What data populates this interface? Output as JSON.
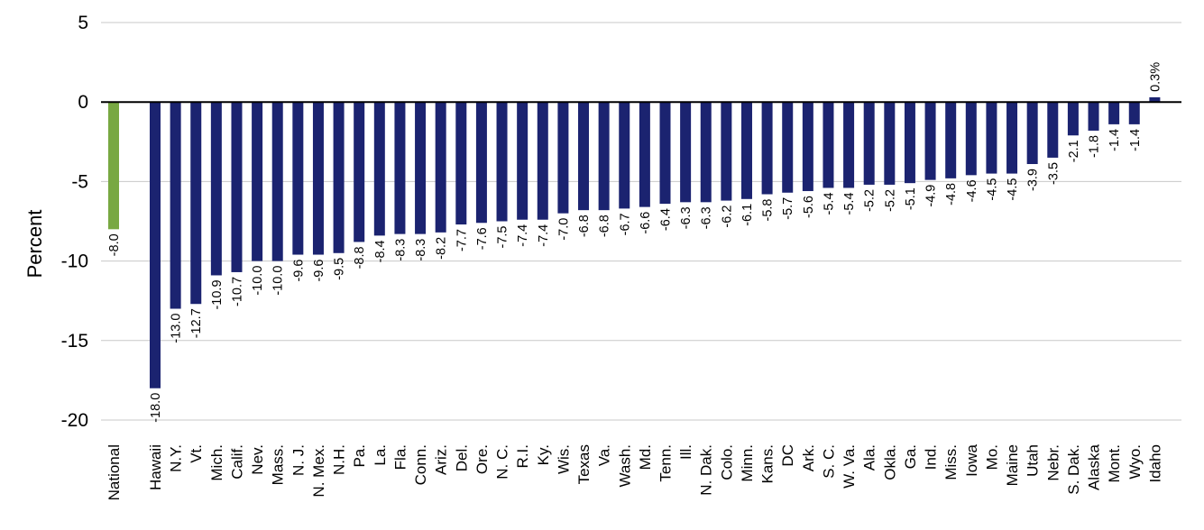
{
  "chart_data": {
    "type": "bar",
    "title": "",
    "xlabel": "",
    "ylabel": "Percent",
    "ylim": [
      -20,
      5
    ],
    "yticks": [
      5,
      0,
      -5,
      -10,
      -15,
      -20
    ],
    "grid": true,
    "legend": "none",
    "colors": {
      "national": "#78a842",
      "states": "#1b2370"
    },
    "categories": [
      "National",
      "Hawaii",
      "N.Y.",
      "Vt.",
      "Mich.",
      "Calif.",
      "Nev.",
      "Mass.",
      "N. J.",
      "N. Mex.",
      "N.H.",
      "Pa.",
      "La.",
      "Fla.",
      "Conn.",
      "Ariz.",
      "Del.",
      "Ore.",
      "N. C.",
      "R.I.",
      "Ky.",
      "Wis.",
      "Texas",
      "Va.",
      "Wash.",
      "Md.",
      "Tenn.",
      "Ill.",
      "N. Dak.",
      "Colo.",
      "Minn.",
      "Kans.",
      "DC",
      "Ark.",
      "S. C.",
      "W. Va.",
      "Ala.",
      "Okla.",
      "Ga.",
      "Ind.",
      "Miss.",
      "Iowa",
      "Mo.",
      "Maine",
      "Utah",
      "Nebr.",
      "S. Dak.",
      "Alaska",
      "Mont.",
      "Wyo.",
      "Idaho"
    ],
    "values": [
      -8.0,
      -18.0,
      -13.0,
      -12.7,
      -10.9,
      -10.7,
      -10.0,
      -10.0,
      -9.6,
      -9.6,
      -9.5,
      -8.8,
      -8.4,
      -8.3,
      -8.3,
      -8.2,
      -7.7,
      -7.6,
      -7.5,
      -7.4,
      -7.4,
      -7.0,
      -6.8,
      -6.8,
      -6.7,
      -6.6,
      -6.4,
      -6.3,
      -6.3,
      -6.2,
      -6.1,
      -5.8,
      -5.7,
      -5.6,
      -5.4,
      -5.4,
      -5.2,
      -5.2,
      -5.1,
      -4.9,
      -4.8,
      -4.6,
      -4.5,
      -4.5,
      -3.9,
      -3.5,
      -2.1,
      -1.8,
      -1.4,
      -1.4,
      0.3
    ],
    "value_labels": [
      "-8.0",
      "-18.0",
      "-13.0",
      "-12.7",
      "-10.9",
      "-10.7",
      "-10.0",
      "-10.0",
      "-9.6",
      "-9.6",
      "-9.5",
      "-8.8",
      "-8.4",
      "-8.3",
      "-8.3",
      "-8.2",
      "-7.7",
      "-7.6",
      "-7.5",
      "-7.4",
      "-7.4",
      "-7.0",
      "-6.8",
      "-6.8",
      "-6.7",
      "-6.6",
      "-6.4",
      "-6.3",
      "-6.3",
      "-6.2",
      "-6.1",
      "-5.8",
      "-5.7",
      "-5.6",
      "-5.4",
      "-5.4",
      "-5.2",
      "-5.2",
      "-5.1",
      "-4.9",
      "-4.8",
      "-4.6",
      "-4.5",
      "-4.5",
      "-3.9",
      "-3.5",
      "-2.1",
      "-1.8",
      "-1.4",
      "-1.4",
      "0.3%"
    ]
  }
}
